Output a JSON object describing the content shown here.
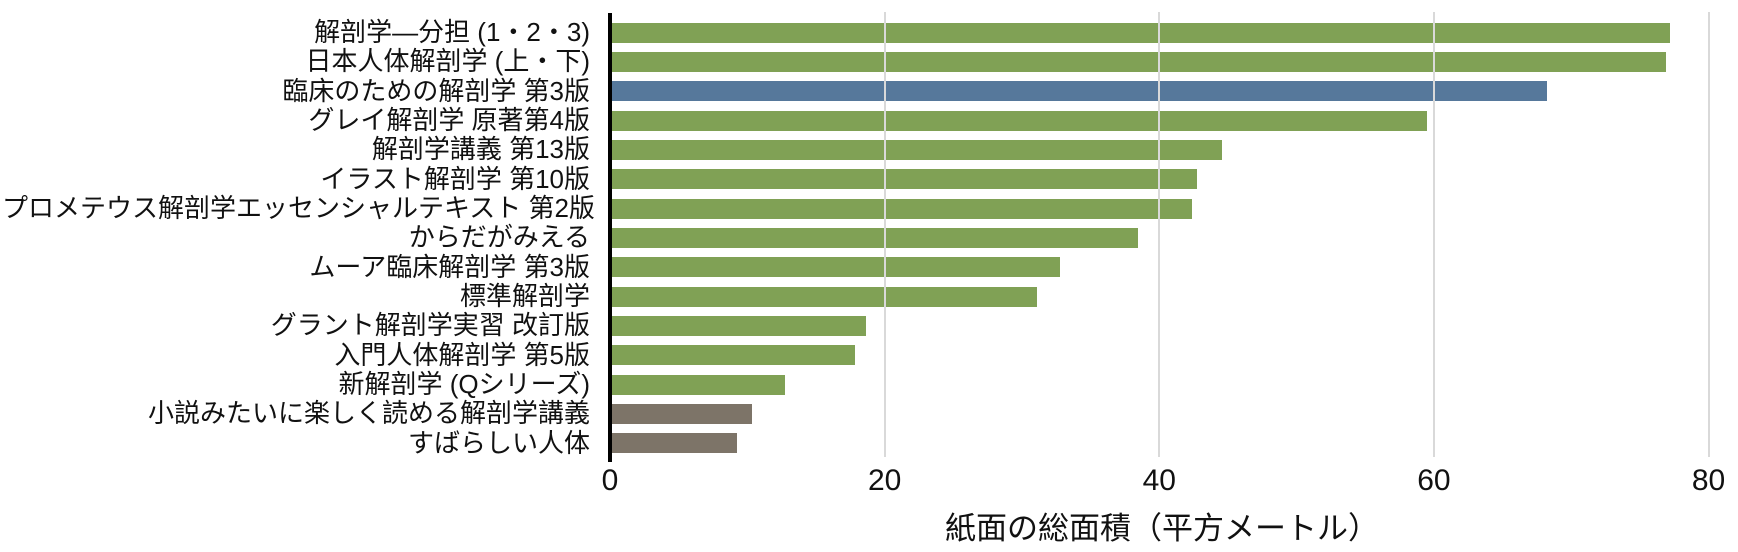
{
  "chart_data": {
    "type": "bar",
    "orientation": "horizontal",
    "xlabel": "紙面の総面積（平方メートル）",
    "ylabel": "",
    "xlim": [
      0,
      80.4
    ],
    "xticks": [
      0,
      20,
      40,
      60,
      80
    ],
    "grid": "vertical gridlines at x ticks, drawn over bars",
    "legend": "none",
    "categories": [
      "解剖学―分担 (1・2・3)",
      "日本人体解剖学 (上・下)",
      "臨床のための解剖学 第3版",
      "グレイ解剖学 原著第4版",
      "解剖学講義 第13版",
      "イラスト解剖学 第10版",
      "プロメテウス解剖学エッセンシャルテキスト 第2版",
      "からだがみえる",
      "ムーア臨床解剖学 第3版",
      "標準解剖学",
      "グラント解剖学実習 改訂版",
      "入門人体解剖学 第5版",
      "新解剖学 (Qシリーズ)",
      "小説みたいに楽しく読める解剖学講義",
      "すばらしい人体"
    ],
    "values": [
      77.1,
      76.8,
      68.2,
      59.4,
      44.5,
      42.7,
      42.3,
      38.4,
      32.7,
      31.0,
      18.6,
      17.8,
      12.7,
      10.3,
      9.2
    ],
    "bar_color_keys": [
      "default",
      "default",
      "highlight",
      "default",
      "default",
      "default",
      "default",
      "default",
      "default",
      "default",
      "default",
      "default",
      "default",
      "muted",
      "muted"
    ],
    "palette": {
      "default": "#80a155",
      "highlight": "#56789b",
      "muted": "#7d7468"
    },
    "colors": {
      "axis": "#000000",
      "grid": "#d9d9d9",
      "text": "#111111",
      "background": "#ffffff"
    }
  }
}
